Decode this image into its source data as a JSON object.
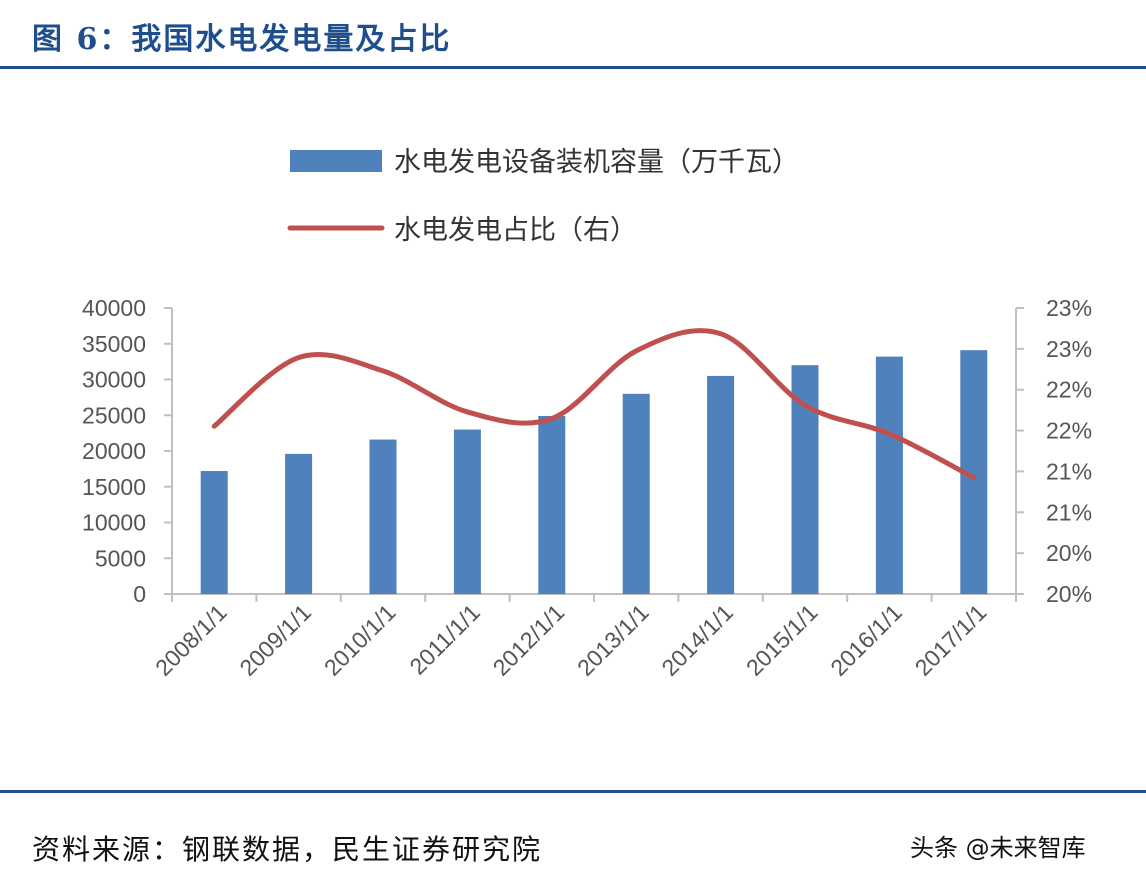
{
  "header": {
    "title": "图 6：我国水电发电量及占比"
  },
  "footer": {
    "source": "资料来源：钢联数据，民生证券研究院",
    "watermark": "头条 @未来智库"
  },
  "colors": {
    "bar": "#4f81bd",
    "line": "#c0504d",
    "accent": "#1f4e8c"
  },
  "chart_data": {
    "type": "bar",
    "title": "",
    "categories": [
      "2008/1/1",
      "2009/1/1",
      "2010/1/1",
      "2011/1/1",
      "2012/1/1",
      "2013/1/1",
      "2014/1/1",
      "2015/1/1",
      "2016/1/1",
      "2017/1/1"
    ],
    "series": [
      {
        "name": "水电发电设备装机容量（万千瓦）",
        "type": "bar",
        "axis": "left",
        "values": [
          17200,
          19600,
          21600,
          23000,
          24900,
          28000,
          30500,
          32000,
          33200,
          34100
        ]
      },
      {
        "name": "水电发电占比（右）",
        "type": "line",
        "axis": "right",
        "values": [
          21.76,
          22.48,
          22.34,
          21.91,
          21.84,
          22.55,
          22.73,
          21.98,
          21.68,
          21.22
        ]
      }
    ],
    "y_left": {
      "ylim": [
        0,
        40000
      ],
      "ticks": [
        "0",
        "5000",
        "10000",
        "15000",
        "20000",
        "25000",
        "30000",
        "35000",
        "40000"
      ]
    },
    "y_right": {
      "ylim": [
        20,
        23
      ],
      "ticks": [
        "20%",
        "20%",
        "21%",
        "21%",
        "22%",
        "22%",
        "23%",
        "23%"
      ]
    },
    "legend": "top-center",
    "grid": false
  }
}
